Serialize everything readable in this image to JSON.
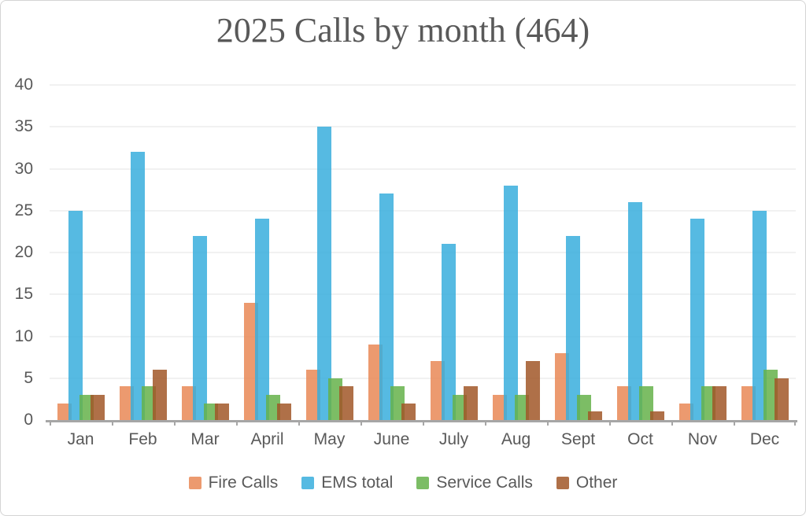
{
  "title": "2025 Calls by month (464)",
  "colors": {
    "text": "#595959",
    "gridline": "#f1f1f1",
    "axis": "#a6a6a6",
    "fire": "#EC9A6F",
    "ems": "#56BAE2",
    "service": "#7CBD65",
    "other": "#AF7048"
  },
  "chart_data": {
    "type": "bar",
    "title": "2025 Calls by month (464)",
    "categories": [
      "Jan",
      "Feb",
      "Mar",
      "April",
      "May",
      "June",
      "July",
      "Aug",
      "Sept",
      "Oct",
      "Nov",
      "Dec"
    ],
    "series": [
      {
        "name": "Fire Calls",
        "color": "#EC9A6F",
        "values": [
          2,
          4,
          4,
          14,
          6,
          9,
          7,
          3,
          8,
          4,
          2,
          4
        ]
      },
      {
        "name": "EMS total",
        "color": "#56BAE2",
        "values": [
          25,
          32,
          22,
          24,
          35,
          27,
          21,
          28,
          22,
          26,
          24,
          25
        ]
      },
      {
        "name": "Service Calls",
        "color": "#7CBD65",
        "values": [
          3,
          4,
          2,
          3,
          5,
          4,
          3,
          3,
          3,
          4,
          4,
          6
        ]
      },
      {
        "name": "Other",
        "color": "#AF7048",
        "values": [
          3,
          6,
          2,
          2,
          4,
          2,
          4,
          7,
          1,
          1,
          4,
          5
        ]
      }
    ],
    "xlabel": "",
    "ylabel": "",
    "ylim": [
      0,
      40
    ],
    "ytick_step": 5,
    "grid": true,
    "legend_position": "bottom"
  }
}
